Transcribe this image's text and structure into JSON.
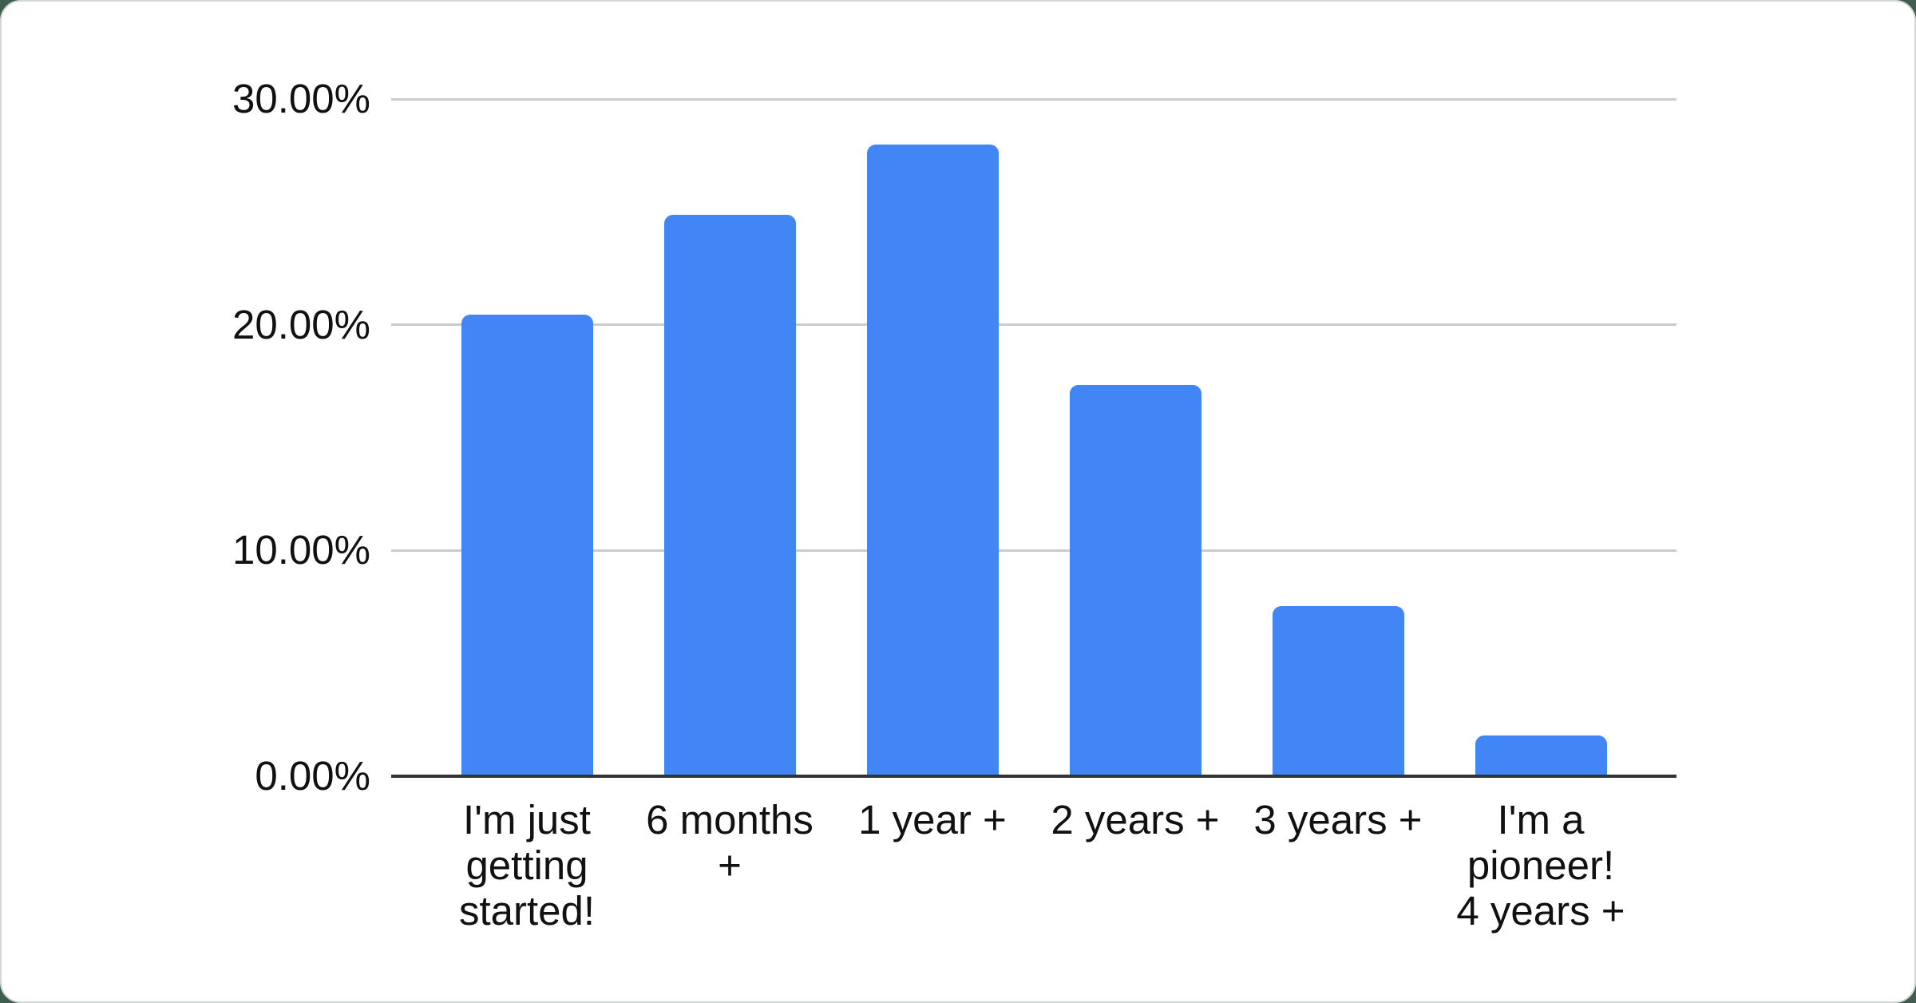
{
  "window": {
    "outer_background_color": "#3f5e50",
    "card_background_color": "#ffffff"
  },
  "chart_data": {
    "type": "bar",
    "title": "",
    "xlabel": "",
    "ylabel": "",
    "unit": "%",
    "categories": [
      "I'm just getting started!",
      "6 months +",
      "1 year +",
      "2 years +",
      "3 years +",
      "I'm a pioneer! 4 years +"
    ],
    "category_lines": [
      [
        "I'm just",
        "getting",
        "started!"
      ],
      [
        "6 months",
        "+"
      ],
      [
        "1 year +"
      ],
      [
        "2 years +"
      ],
      [
        "3 years +"
      ],
      [
        "I'm a",
        "pioneer!",
        "4 years +"
      ]
    ],
    "values": [
      20.45,
      24.87,
      27.98,
      17.33,
      7.54,
      1.8
    ],
    "ylim": [
      0,
      30
    ],
    "y_ticks": [
      {
        "value": 0,
        "label": "0.00%"
      },
      {
        "value": 10,
        "label": "10.00%"
      },
      {
        "value": 20,
        "label": "20.00%"
      },
      {
        "value": 30,
        "label": "30.00%"
      }
    ],
    "grid": true,
    "legend": "none",
    "bar_color": "#4285f4",
    "gridline_color": "#cccccc",
    "axis_line_color": "#333333",
    "label_color": "#111111"
  }
}
